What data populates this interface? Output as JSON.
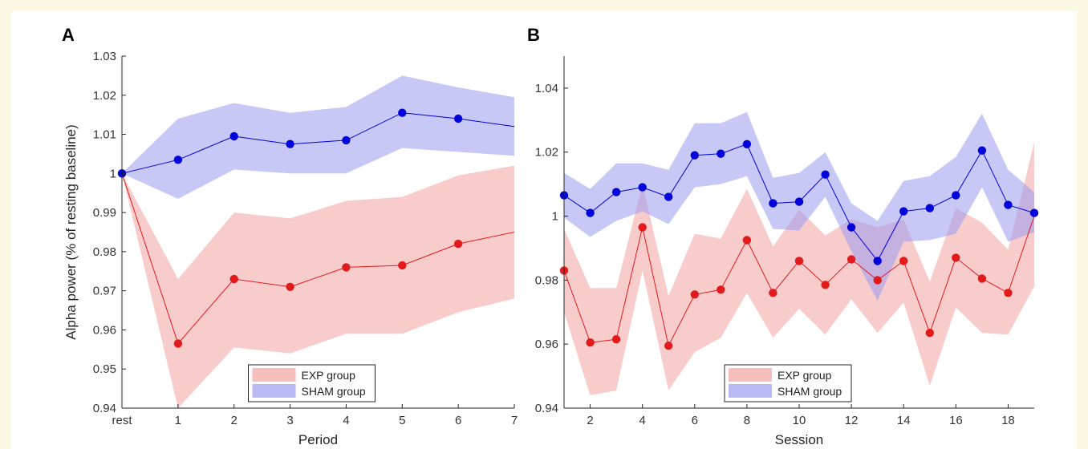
{
  "figure": {
    "background": "#fdf8e3",
    "panel_labels": [
      "A",
      "B"
    ]
  },
  "chart_data": [
    {
      "panel": "A",
      "type": "line",
      "xlabel": "Period",
      "ylabel": "Alpha power (% of resting baseline)",
      "x_tick_labels": [
        "rest",
        "1",
        "2",
        "3",
        "4",
        "5",
        "6",
        "7"
      ],
      "y_tick_labels": [
        "0.94",
        "0.95",
        "0.96",
        "0.97",
        "0.98",
        "0.99",
        "1",
        "1.01",
        "1.02",
        "1.03"
      ],
      "xlim": [
        0,
        7
      ],
      "ylim": [
        0.94,
        1.03
      ],
      "y_ticks": [
        0.94,
        0.95,
        0.96,
        0.97,
        0.98,
        0.99,
        1.0,
        1.01,
        1.02,
        1.03
      ],
      "grid": false,
      "legend_position": "bottom-center",
      "series": [
        {
          "name": "EXP group",
          "color": "#e31a1c",
          "band_color": "#f4a3a3",
          "x": [
            0,
            1,
            2,
            3,
            4,
            5,
            6,
            7
          ],
          "y": [
            1.0,
            0.9565,
            0.973,
            0.971,
            0.976,
            0.9765,
            0.982,
            0.985
          ],
          "upper": [
            1.0,
            0.973,
            0.99,
            0.9885,
            0.993,
            0.994,
            0.9995,
            1.002
          ],
          "lower": [
            1.0,
            0.94,
            0.9555,
            0.954,
            0.959,
            0.959,
            0.9645,
            0.968
          ],
          "markers": [
            true,
            true,
            true,
            true,
            true,
            true,
            true,
            false
          ]
        },
        {
          "name": "SHAM group",
          "color": "#0000dd",
          "band_color": "#9b9bf0",
          "x": [
            0,
            1,
            2,
            3,
            4,
            5,
            6,
            7
          ],
          "y": [
            1.0,
            1.0035,
            1.0095,
            1.0075,
            1.0085,
            1.0155,
            1.014,
            1.012
          ],
          "upper": [
            1.0,
            1.014,
            1.018,
            1.0155,
            1.017,
            1.025,
            1.022,
            1.0195
          ],
          "lower": [
            1.0,
            0.9935,
            1.001,
            1.0,
            1.0,
            1.0065,
            1.0055,
            1.0045
          ],
          "markers": [
            true,
            true,
            true,
            true,
            true,
            true,
            true,
            false
          ]
        }
      ]
    },
    {
      "panel": "B",
      "type": "line",
      "xlabel": "Session",
      "ylabel": "",
      "x_tick_labels": [
        "2",
        "4",
        "6",
        "8",
        "10",
        "12",
        "14",
        "16",
        "18"
      ],
      "x_ticks": [
        2,
        4,
        6,
        8,
        10,
        12,
        14,
        16,
        18
      ],
      "y_tick_labels": [
        "0.94",
        "0.96",
        "0.98",
        "1",
        "1.02",
        "1.04"
      ],
      "y_ticks": [
        0.94,
        0.96,
        0.98,
        1.0,
        1.02,
        1.04
      ],
      "xlim": [
        1,
        19
      ],
      "ylim": [
        0.94,
        1.05
      ],
      "grid": false,
      "legend_position": "bottom-center",
      "series": [
        {
          "name": "EXP group",
          "color": "#e31a1c",
          "band_color": "#f4a3a3",
          "x": [
            1,
            2,
            3,
            4,
            5,
            6,
            7,
            8,
            9,
            10,
            11,
            12,
            13,
            14,
            15,
            16,
            17,
            18,
            19
          ],
          "y": [
            0.983,
            0.9605,
            0.9615,
            0.9965,
            0.9595,
            0.9755,
            0.977,
            0.9925,
            0.976,
            0.986,
            0.9785,
            0.9865,
            0.98,
            0.986,
            0.9635,
            0.987,
            0.9805,
            0.976,
            1.0
          ],
          "upper": [
            0.996,
            0.9775,
            0.9775,
            1.01,
            0.975,
            0.9945,
            0.993,
            1.0085,
            0.9905,
            1.002,
            0.994,
            0.999,
            0.9965,
            0.999,
            0.9795,
            1.0025,
            0.998,
            0.9895,
            1.023
          ],
          "lower": [
            0.97,
            0.944,
            0.9455,
            0.983,
            0.9455,
            0.9575,
            0.962,
            0.976,
            0.962,
            0.971,
            0.963,
            0.974,
            0.9635,
            0.973,
            0.947,
            0.9715,
            0.9635,
            0.963,
            0.978
          ],
          "markers": [
            true,
            true,
            true,
            true,
            true,
            true,
            true,
            true,
            true,
            true,
            true,
            true,
            true,
            true,
            true,
            true,
            true,
            true,
            false
          ]
        },
        {
          "name": "SHAM group",
          "color": "#0000dd",
          "band_color": "#9b9bf0",
          "x": [
            1,
            2,
            3,
            4,
            5,
            6,
            7,
            8,
            9,
            10,
            11,
            12,
            13,
            14,
            15,
            16,
            17,
            18,
            19
          ],
          "y": [
            1.0065,
            1.001,
            1.0075,
            1.009,
            1.006,
            1.019,
            1.0195,
            1.0225,
            1.004,
            1.0045,
            1.013,
            0.9965,
            0.986,
            1.0015,
            1.0025,
            1.0065,
            1.0205,
            1.0035,
            1.001
          ],
          "upper": [
            1.0135,
            1.0085,
            1.0165,
            1.0165,
            1.0145,
            1.029,
            1.029,
            1.0325,
            1.012,
            1.0135,
            1.02,
            1.004,
            0.9985,
            1.011,
            1.0125,
            1.0185,
            1.032,
            1.0145,
            1.0075
          ],
          "lower": [
            0.9995,
            0.9935,
            0.9985,
            1.0015,
            0.9975,
            1.009,
            1.01,
            1.0125,
            0.996,
            0.9955,
            1.006,
            0.989,
            0.9735,
            0.992,
            0.9925,
            0.9945,
            1.009,
            0.992,
            0.995
          ],
          "markers": [
            true,
            true,
            true,
            true,
            true,
            true,
            true,
            true,
            true,
            true,
            true,
            true,
            true,
            true,
            true,
            true,
            true,
            true,
            true
          ]
        }
      ]
    }
  ]
}
